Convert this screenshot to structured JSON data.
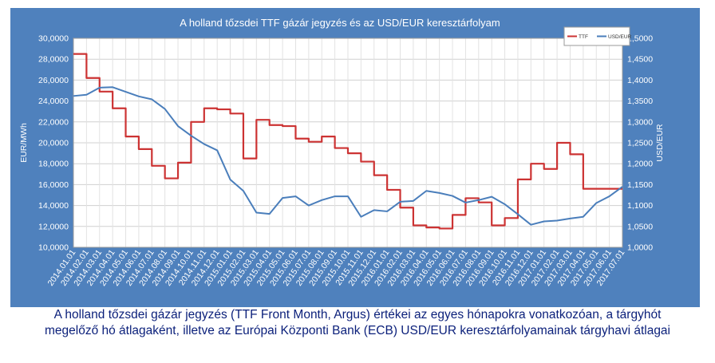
{
  "chart_data": {
    "type": "line",
    "title": "A holland tőzsdei TTF gázár jegyzés és az USD/EUR keresztárfolyam",
    "ylabel_left": "EUR/MWh",
    "ylabel_right": "USD/EUR",
    "ylim_left": [
      10000,
      30000
    ],
    "ylim_right": [
      1.0,
      1.5
    ],
    "yticks_left": [
      "10,0000",
      "12,0000",
      "14,0000",
      "16,0000",
      "18,0000",
      "20,0000",
      "22,0000",
      "24,0000",
      "26,0000",
      "28,0000",
      "30,0000"
    ],
    "yticks_right": [
      "1,0000",
      "1,0500",
      "1,1000",
      "1,1500",
      "1,2000",
      "1,2500",
      "1,3000",
      "1,3500",
      "1,4000",
      "1,4500",
      "1,5000"
    ],
    "x_labels": [
      "2014.01.01",
      "2014.02.01",
      "2014.03.01",
      "2014.04.01",
      "2014.05.01",
      "2014.06.01",
      "2014.07.01",
      "2014.08.01",
      "2014.09.01",
      "2014.10.01",
      "2014.11.01",
      "2014.12.01",
      "2015.01.01",
      "2015.02.01",
      "2015.03.01",
      "2015.04.01",
      "2015.05.01",
      "2015.06.01",
      "2015.07.01",
      "2015.08.01",
      "2015.09.01",
      "2015.10.01",
      "2015.11.01",
      "2015.12.01",
      "2016.01.01",
      "2016.02.01",
      "2016.03.01",
      "2016.04.01",
      "2016.05.01",
      "2016.06.01",
      "2016.07.01",
      "2016.08.01",
      "2016.09.01",
      "2016.10.01",
      "2016.11.01",
      "2016.12.01",
      "2017.01.01",
      "2017.02.01",
      "2017.03.01",
      "2017.04.01",
      "2017.05.01",
      "2017.06.01",
      "2017.07.01"
    ],
    "grid": true,
    "legend_position": "top-right",
    "series": [
      {
        "name": "TTF",
        "axis": "left",
        "color": "#cc3333",
        "step": true,
        "values": [
          28500,
          26200,
          24900,
          23300,
          20600,
          19400,
          17800,
          16600,
          18100,
          22000,
          23300,
          23200,
          22800,
          18500,
          22200,
          21700,
          21600,
          20400,
          20100,
          20600,
          19500,
          19000,
          18200,
          16900,
          15500,
          13800,
          12100,
          11900,
          11800,
          13100,
          14700,
          14300,
          12100,
          12800,
          16500,
          18000,
          17500,
          20000,
          18900,
          15600,
          15600,
          15600,
          15600
        ]
      },
      {
        "name": "USD/EUR",
        "axis": "right",
        "color": "#4a7ebb",
        "step": false,
        "values": [
          1.362,
          1.365,
          1.382,
          1.383,
          1.372,
          1.361,
          1.354,
          1.331,
          1.29,
          1.267,
          1.247,
          1.232,
          1.162,
          1.135,
          1.083,
          1.08,
          1.118,
          1.122,
          1.1,
          1.113,
          1.122,
          1.122,
          1.073,
          1.089,
          1.086,
          1.109,
          1.111,
          1.135,
          1.13,
          1.123,
          1.107,
          1.113,
          1.121,
          1.103,
          1.079,
          1.054,
          1.062,
          1.064,
          1.069,
          1.073,
          1.106,
          1.122,
          1.145
        ]
      }
    ]
  },
  "caption": {
    "line1": "A holland tőzsdei gázár jegyzés (TTF Front Month, Argus) értékei az egyes hónapokra vonatkozóan, a tárgyhót",
    "line2": "megelőző hó átlagaként, illetve az Európai Központi Bank (ECB) USD/EUR keresztárfolyamainak tárgyhavi átlagai"
  }
}
